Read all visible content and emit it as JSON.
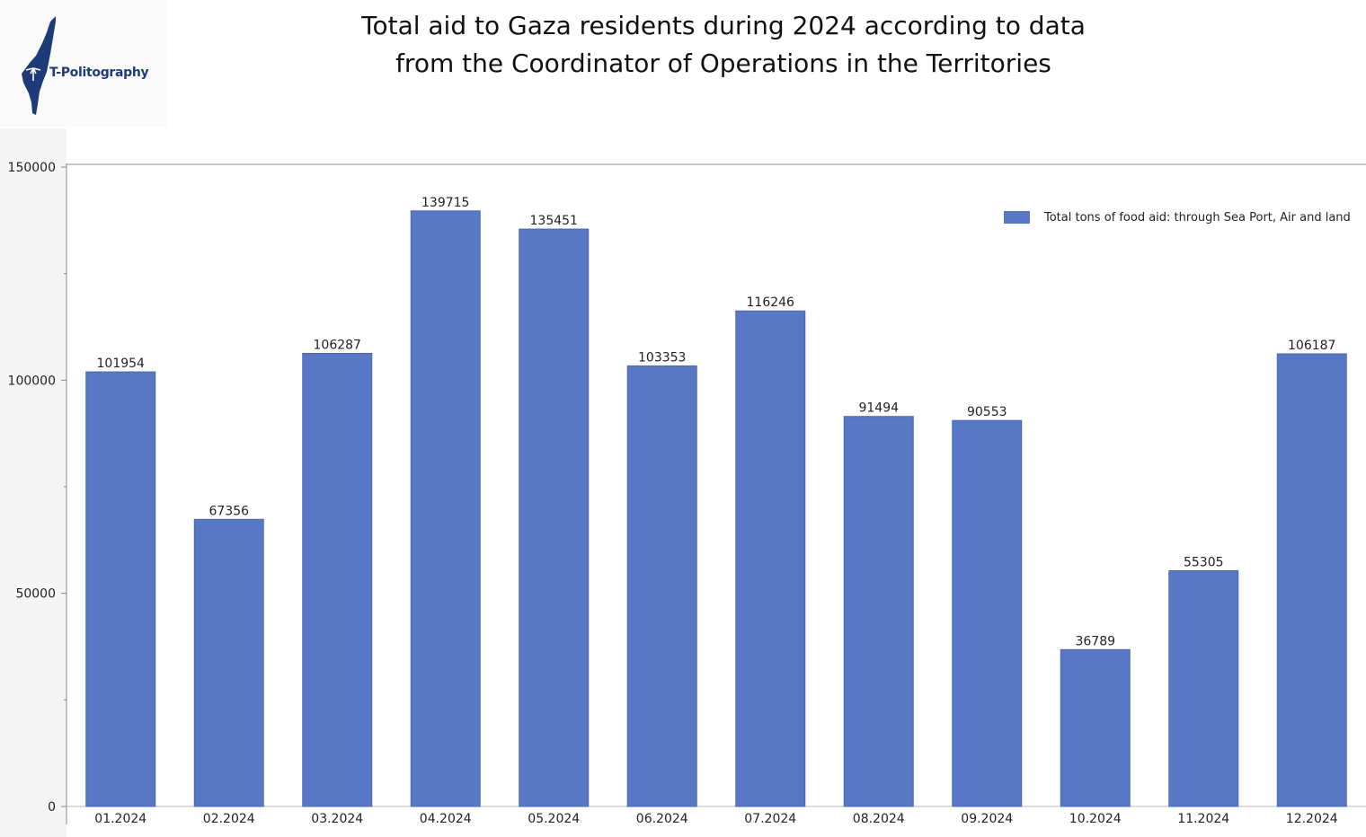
{
  "header": {
    "title_line1": "Total aid to Gaza residents during 2024 according to data",
    "title_line2": "from the Coordinator of Operations in the Territories"
  },
  "logo": {
    "text": "T-Politography",
    "icon": "israel-map-icon",
    "color": "#1e3a78"
  },
  "colors": {
    "bar": "#5877c4",
    "axis": "#888888",
    "text": "#222222"
  },
  "chart_data": {
    "type": "bar",
    "title": "Total aid to Gaza residents during 2024 according to data from the Coordinator of Operations in the Territories",
    "xlabel": "",
    "ylabel": "",
    "categories": [
      "01.2024",
      "02.2024",
      "03.2024",
      "04.2024",
      "05.2024",
      "06.2024",
      "07.2024",
      "08.2024",
      "09.2024",
      "10.2024",
      "11.2024",
      "12.2024"
    ],
    "series": [
      {
        "name": "Total tons of food aid: through Sea Port, Air and land",
        "values": [
          101954,
          67356,
          106287,
          139715,
          135451,
          103353,
          116246,
          91494,
          90553,
          36789,
          55305,
          106187
        ]
      }
    ],
    "ylim": [
      0,
      150000
    ],
    "yticks": [
      0,
      50000,
      100000,
      150000
    ],
    "grid": false,
    "legend_position": "top-right",
    "data_labels": true
  }
}
